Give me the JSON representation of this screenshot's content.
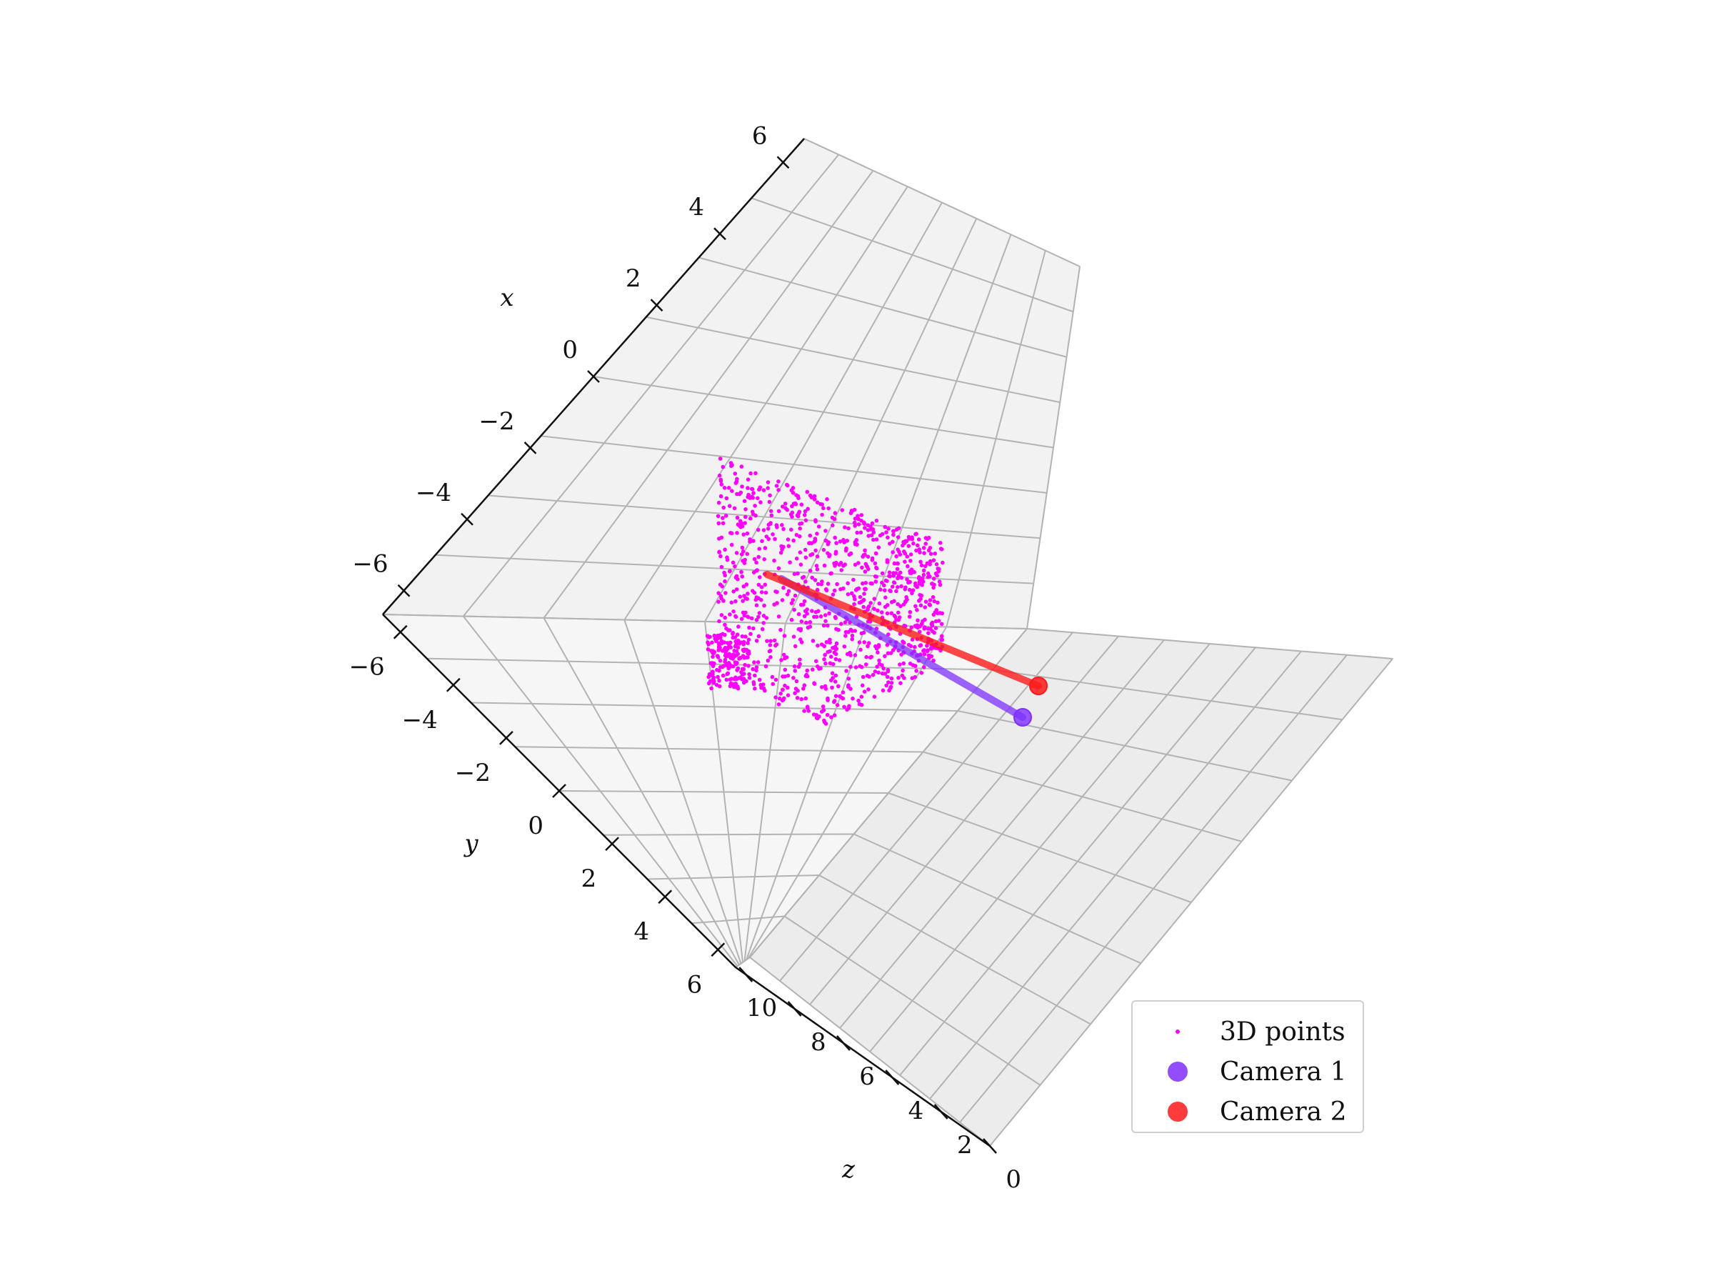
{
  "chart_data": {
    "type": "scatter3d",
    "axes": {
      "x": {
        "label": "x",
        "ticks": [
          "−6",
          "−4",
          "−2",
          "0",
          "2",
          "4",
          "6"
        ]
      },
      "y": {
        "label": "y",
        "ticks": [
          "−6",
          "−4",
          "−2",
          "0",
          "2",
          "4",
          "6"
        ]
      },
      "z": {
        "label": "z",
        "ticks": [
          "10",
          "8",
          "6",
          "4",
          "2",
          "0"
        ]
      }
    },
    "series": [
      {
        "name": "3D points",
        "kind": "points",
        "color": "#ff00ff",
        "count": 1200
      },
      {
        "name": "Camera 1",
        "kind": "camera",
        "color": "#7f2fff"
      },
      {
        "name": "Camera 2",
        "kind": "camera",
        "color": "#ff1a1a"
      }
    ],
    "grid": true,
    "legend_position": "bottom-right"
  }
}
